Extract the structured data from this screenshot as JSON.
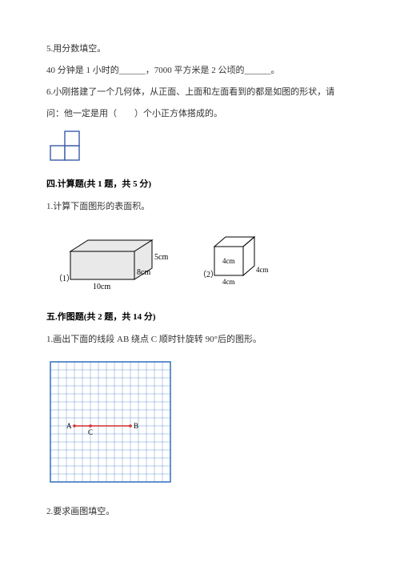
{
  "q5": {
    "stem": "5.用分数填空。",
    "line": "40 分钟是 1 小时的______，7000 平方米是 2 公顷的______。"
  },
  "q6": {
    "line1": "6.小刚搭建了一个几何体，从正面、上面和左面看到的都是如图的形状，请",
    "line2": "问：他一定是用（　　）个小正方体搭成的。"
  },
  "q6_figure": {
    "stroke": "#3b5aa8",
    "fill": "#ffffff",
    "cell": 18
  },
  "sec4": {
    "title": "四.计算题(共 1 题，共 5 分)",
    "q1": "1.计算下面图形的表面积。"
  },
  "box1": {
    "label_prefix": "（1）",
    "w": "10cm",
    "d": "8cm",
    "h": "5cm",
    "stroke": "#000000",
    "fill": "#e9e9e9"
  },
  "box2": {
    "label_prefix": "（2）",
    "a": "4cm",
    "stroke": "#000000"
  },
  "sec5": {
    "title": "五.作图题(共 2 题，共 14 分)",
    "q1": "1.画出下面的线段 AB 绕点 C 顺时针旋转 90°后的图形。",
    "q2": "2.要求画图填空。"
  },
  "grid": {
    "cells": 15,
    "cell_size": 10,
    "border": "#2f6fbf",
    "line": "#2f6fbf",
    "bg": "#ffffff",
    "segment_color": "#d32f2f",
    "labels": {
      "A": "A",
      "B": "B",
      "C": "C"
    },
    "A": {
      "col": 3,
      "row": 8
    },
    "B": {
      "col": 10,
      "row": 8
    },
    "C": {
      "col": 5,
      "row": 8
    }
  }
}
